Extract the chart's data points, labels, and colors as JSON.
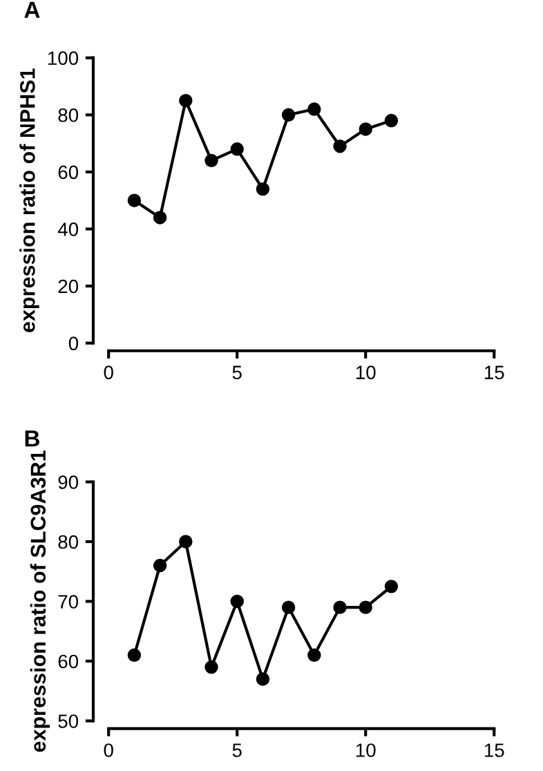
{
  "chart_data": [
    {
      "type": "line",
      "title": "A",
      "ylabel": "expression ratio of NPHS1",
      "x": [
        1,
        2,
        3,
        4,
        5,
        6,
        7,
        8,
        9,
        10,
        11
      ],
      "series": [
        {
          "color": "#000000",
          "values": [
            50,
            44,
            85,
            64,
            68,
            54,
            80,
            82,
            69,
            75,
            78
          ]
        }
      ],
      "xlim": [
        0,
        15
      ],
      "xticks": [
        0,
        5,
        10,
        15
      ],
      "ylim": [
        0,
        100
      ],
      "yticks": [
        0,
        20,
        40,
        60,
        80,
        100
      ],
      "marker": "circle",
      "line_style": "solid",
      "grid": false,
      "legend": false
    },
    {
      "type": "line",
      "title": "B",
      "ylabel": "expression ratio of SLC9A3R1",
      "x": [
        1,
        2,
        3,
        4,
        5,
        6,
        7,
        8,
        9,
        10,
        11
      ],
      "series": [
        {
          "color": "#000000",
          "values": [
            61,
            76,
            80,
            59,
            70,
            57,
            69,
            61,
            69,
            69,
            72.5
          ]
        }
      ],
      "xlim": [
        0,
        15
      ],
      "xticks": [
        0,
        5,
        10,
        15
      ],
      "ylim": [
        50,
        90
      ],
      "yticks": [
        50,
        60,
        70,
        80,
        90
      ],
      "marker": "circle",
      "line_style": "solid",
      "grid": false,
      "legend": false
    }
  ]
}
